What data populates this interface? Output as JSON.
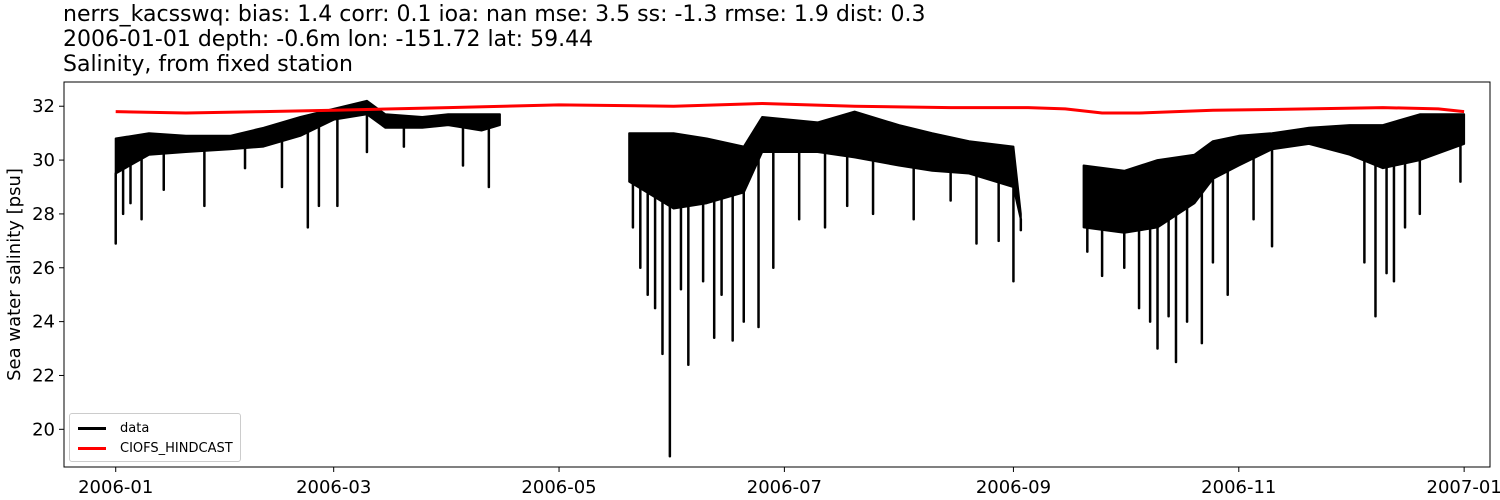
{
  "figure": {
    "title_lines": [
      "nerrs_kacsswq: bias: 1.4  corr: 0.1  ioa: nan  mse: 3.5  ss: -1.3  rmse: 1.9  dist: 0.3",
      "2006-01-01 depth: -0.6m lon: -151.72 lat: 59.44",
      "Salinity, from fixed station"
    ]
  },
  "chart_data": {
    "type": "line",
    "title": "nerrs_kacsswq: bias: 1.4  corr: 0.1  ioa: nan  mse: 3.5  ss: -1.3  rmse: 1.9  dist: 0.3",
    "subtitle": "2006-01-01 depth: -0.6m lon: -151.72 lat: 59.44 / Salinity, from fixed station",
    "xlabel": "",
    "ylabel": "Sea water salinity [psu]",
    "xlim": [
      "2005-12-18",
      "2007-01-08"
    ],
    "ylim": [
      18.6,
      32.9
    ],
    "yticks": [
      20,
      22,
      24,
      26,
      28,
      30,
      32
    ],
    "xticks": [
      "2006-01",
      "2006-03",
      "2006-05",
      "2006-07",
      "2006-09",
      "2006-11",
      "2007-01"
    ],
    "grid": false,
    "legend_position": "lower-left",
    "series": [
      {
        "name": "data",
        "color": "#000000",
        "segments": [
          {
            "upper": [
              [
                "2006-01-01",
                30.8
              ],
              [
                "2006-01-10",
                31.0
              ],
              [
                "2006-01-20",
                30.9
              ],
              [
                "2006-02-01",
                30.9
              ],
              [
                "2006-02-10",
                31.2
              ],
              [
                "2006-02-20",
                31.6
              ],
              [
                "2006-03-01",
                31.9
              ],
              [
                "2006-03-10",
                32.2
              ],
              [
                "2006-03-15",
                31.7
              ],
              [
                "2006-03-25",
                31.6
              ],
              [
                "2006-04-01",
                31.7
              ],
              [
                "2006-04-10",
                31.7
              ],
              [
                "2006-04-15",
                31.7
              ]
            ],
            "lower": [
              [
                "2006-01-01",
                29.5
              ],
              [
                "2006-01-10",
                30.2
              ],
              [
                "2006-01-20",
                30.3
              ],
              [
                "2006-02-01",
                30.4
              ],
              [
                "2006-02-10",
                30.5
              ],
              [
                "2006-02-20",
                30.9
              ],
              [
                "2006-03-01",
                31.5
              ],
              [
                "2006-03-10",
                31.7
              ],
              [
                "2006-03-15",
                31.2
              ],
              [
                "2006-03-25",
                31.2
              ],
              [
                "2006-04-01",
                31.3
              ],
              [
                "2006-04-10",
                31.1
              ],
              [
                "2006-04-15",
                31.3
              ]
            ],
            "spikes": [
              [
                "2006-01-01",
                26.9
              ],
              [
                "2006-01-03",
                28.0
              ],
              [
                "2006-01-05",
                28.4
              ],
              [
                "2006-01-08",
                27.8
              ],
              [
                "2006-01-14",
                28.9
              ],
              [
                "2006-01-25",
                28.3
              ],
              [
                "2006-02-05",
                29.7
              ],
              [
                "2006-02-15",
                29.0
              ],
              [
                "2006-02-22",
                27.5
              ],
              [
                "2006-02-25",
                28.3
              ],
              [
                "2006-03-02",
                28.3
              ],
              [
                "2006-03-10",
                30.3
              ],
              [
                "2006-03-20",
                30.5
              ],
              [
                "2006-04-05",
                29.8
              ],
              [
                "2006-04-12",
                29.0
              ]
            ]
          },
          {
            "upper": [
              [
                "2006-05-20",
                31.0
              ],
              [
                "2006-06-01",
                31.0
              ],
              [
                "2006-06-10",
                30.8
              ],
              [
                "2006-06-20",
                30.5
              ],
              [
                "2006-06-25",
                31.6
              ],
              [
                "2006-07-10",
                31.4
              ],
              [
                "2006-07-20",
                31.8
              ],
              [
                "2006-08-01",
                31.3
              ],
              [
                "2006-08-10",
                31.0
              ],
              [
                "2006-08-20",
                30.7
              ],
              [
                "2006-09-01",
                30.5
              ],
              [
                "2006-09-03",
                28.0
              ]
            ],
            "lower": [
              [
                "2006-05-20",
                29.2
              ],
              [
                "2006-06-01",
                28.2
              ],
              [
                "2006-06-10",
                28.4
              ],
              [
                "2006-06-20",
                28.8
              ],
              [
                "2006-06-25",
                30.3
              ],
              [
                "2006-07-10",
                30.3
              ],
              [
                "2006-07-20",
                30.1
              ],
              [
                "2006-08-01",
                29.8
              ],
              [
                "2006-08-10",
                29.6
              ],
              [
                "2006-08-20",
                29.5
              ],
              [
                "2006-09-01",
                29.0
              ],
              [
                "2006-09-03",
                27.8
              ]
            ],
            "spikes": [
              [
                "2006-05-21",
                27.5
              ],
              [
                "2006-05-23",
                26.0
              ],
              [
                "2006-05-25",
                25.0
              ],
              [
                "2006-05-27",
                24.5
              ],
              [
                "2006-05-29",
                22.8
              ],
              [
                "2006-05-31",
                19.0
              ],
              [
                "2006-06-03",
                25.2
              ],
              [
                "2006-06-05",
                22.4
              ],
              [
                "2006-06-09",
                25.5
              ],
              [
                "2006-06-12",
                23.4
              ],
              [
                "2006-06-14",
                25.0
              ],
              [
                "2006-06-17",
                23.3
              ],
              [
                "2006-06-20",
                24.0
              ],
              [
                "2006-06-24",
                23.8
              ],
              [
                "2006-06-28",
                26.0
              ],
              [
                "2006-07-05",
                27.8
              ],
              [
                "2006-07-12",
                27.5
              ],
              [
                "2006-07-18",
                28.3
              ],
              [
                "2006-07-25",
                28.0
              ],
              [
                "2006-08-05",
                27.8
              ],
              [
                "2006-08-15",
                28.5
              ],
              [
                "2006-08-22",
                26.9
              ],
              [
                "2006-08-28",
                27.0
              ],
              [
                "2006-09-01",
                25.5
              ],
              [
                "2006-09-03",
                27.4
              ]
            ]
          },
          {
            "upper": [
              [
                "2006-09-20",
                29.8
              ],
              [
                "2006-10-01",
                29.6
              ],
              [
                "2006-10-10",
                30.0
              ],
              [
                "2006-10-20",
                30.2
              ],
              [
                "2006-10-25",
                30.7
              ],
              [
                "2006-11-01",
                30.9
              ],
              [
                "2006-11-10",
                31.0
              ],
              [
                "2006-11-20",
                31.2
              ],
              [
                "2006-12-01",
                31.3
              ],
              [
                "2006-12-10",
                31.3
              ],
              [
                "2006-12-20",
                31.7
              ],
              [
                "2007-01-01",
                31.7
              ]
            ],
            "lower": [
              [
                "2006-09-20",
                27.5
              ],
              [
                "2006-10-01",
                27.3
              ],
              [
                "2006-10-10",
                27.5
              ],
              [
                "2006-10-20",
                28.4
              ],
              [
                "2006-10-25",
                29.3
              ],
              [
                "2006-11-01",
                29.8
              ],
              [
                "2006-11-10",
                30.4
              ],
              [
                "2006-11-20",
                30.6
              ],
              [
                "2006-12-01",
                30.2
              ],
              [
                "2006-12-10",
                29.7
              ],
              [
                "2006-12-20",
                30.0
              ],
              [
                "2007-01-01",
                30.6
              ]
            ],
            "spikes": [
              [
                "2006-09-21",
                26.6
              ],
              [
                "2006-09-25",
                25.7
              ],
              [
                "2006-10-01",
                26.0
              ],
              [
                "2006-10-05",
                24.5
              ],
              [
                "2006-10-08",
                24.0
              ],
              [
                "2006-10-10",
                23.0
              ],
              [
                "2006-10-13",
                24.2
              ],
              [
                "2006-10-15",
                22.5
              ],
              [
                "2006-10-18",
                24.0
              ],
              [
                "2006-10-22",
                23.2
              ],
              [
                "2006-10-25",
                26.2
              ],
              [
                "2006-10-29",
                25.0
              ],
              [
                "2006-11-05",
                27.8
              ],
              [
                "2006-11-10",
                26.8
              ],
              [
                "2006-12-05",
                26.2
              ],
              [
                "2006-12-08",
                24.2
              ],
              [
                "2006-12-11",
                25.8
              ],
              [
                "2006-12-13",
                25.5
              ],
              [
                "2006-12-16",
                27.5
              ],
              [
                "2006-12-20",
                28.0
              ],
              [
                "2006-12-31",
                29.2
              ]
            ]
          }
        ]
      },
      {
        "name": "CIOFS_HINDCAST",
        "color": "#ff0000",
        "points": [
          [
            "2006-01-01",
            31.8
          ],
          [
            "2006-01-20",
            31.75
          ],
          [
            "2006-02-10",
            31.8
          ],
          [
            "2006-03-01",
            31.85
          ],
          [
            "2006-04-01",
            31.95
          ],
          [
            "2006-05-01",
            32.05
          ],
          [
            "2006-06-01",
            32.0
          ],
          [
            "2006-06-25",
            32.1
          ],
          [
            "2006-07-20",
            32.0
          ],
          [
            "2006-08-15",
            31.95
          ],
          [
            "2006-09-05",
            31.95
          ],
          [
            "2006-09-15",
            31.9
          ],
          [
            "2006-09-25",
            31.75
          ],
          [
            "2006-10-05",
            31.75
          ],
          [
            "2006-10-25",
            31.85
          ],
          [
            "2006-11-20",
            31.9
          ],
          [
            "2006-12-10",
            31.95
          ],
          [
            "2006-12-25",
            31.9
          ],
          [
            "2007-01-01",
            31.8
          ]
        ]
      }
    ]
  }
}
